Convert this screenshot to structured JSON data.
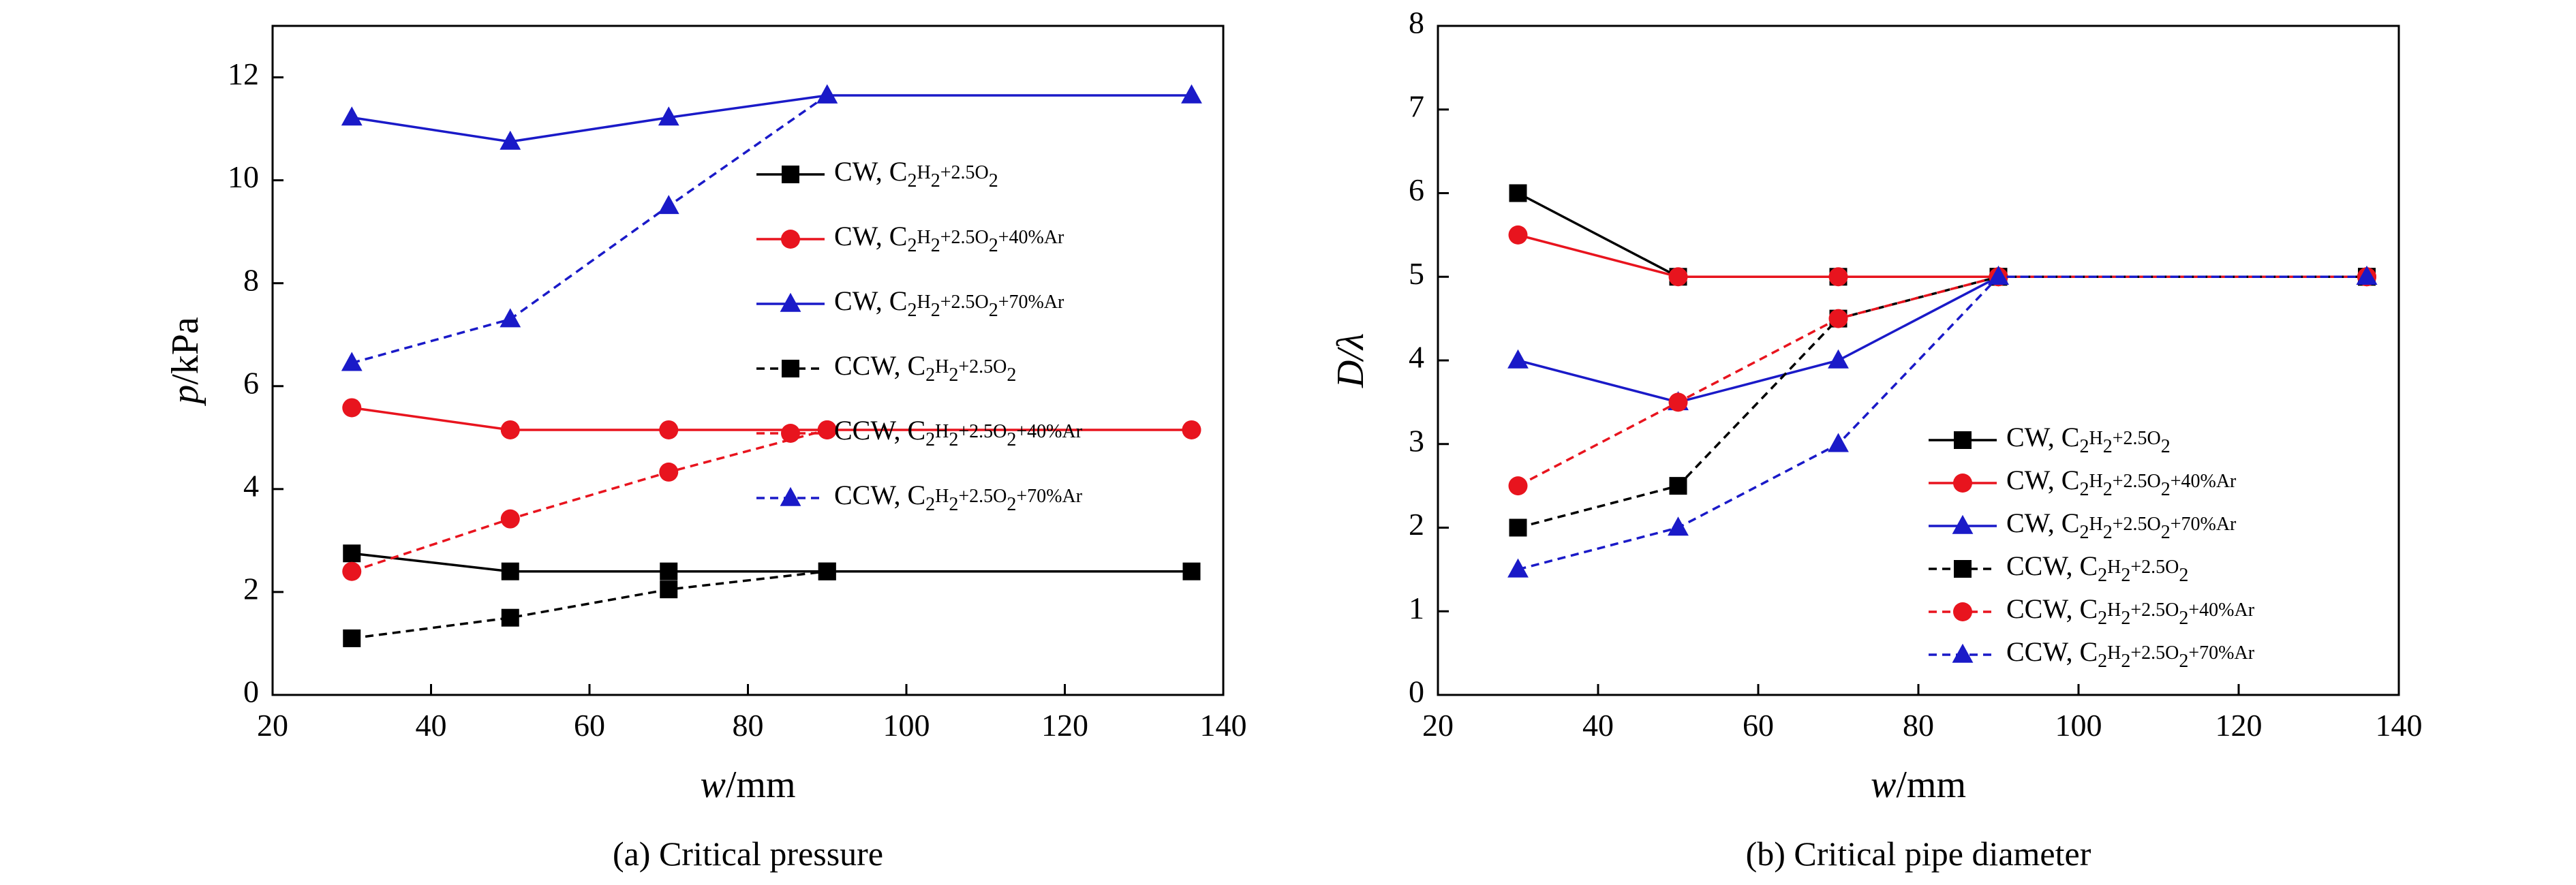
{
  "chart_data": [
    {
      "type": "line",
      "caption": "(a) Critical pressure",
      "xlabel": {
        "var": "w",
        "unit": "/mm"
      },
      "ylabel": {
        "var": "p",
        "unit": "/kPa"
      },
      "xlim": [
        20,
        140
      ],
      "ylim": [
        0,
        13
      ],
      "xticks": [
        20,
        40,
        60,
        80,
        100,
        120,
        140
      ],
      "yticks": [
        0,
        2,
        4,
        6,
        8,
        10,
        12
      ],
      "grid": false,
      "legend_position": "right",
      "x": [
        30,
        50,
        70,
        90,
        136
      ],
      "series": [
        {
          "name": "CW, C2H2+2.5O2",
          "values": [
            2.75,
            2.4,
            2.4,
            2.4,
            2.4
          ]
        },
        {
          "name": "CW, C2H2+2.5O2+40%Ar",
          "values": [
            5.58,
            5.15,
            5.15,
            5.15,
            5.15
          ]
        },
        {
          "name": "CW, C2H2+2.5O2+70%Ar",
          "values": [
            11.22,
            10.75,
            11.22,
            11.65,
            11.65
          ]
        },
        {
          "name": "CCW, C2H2+2.5O2",
          "values": [
            1.1,
            1.5,
            2.05,
            2.4,
            null
          ]
        },
        {
          "name": "CCW, C2H2+2.5O2+40%Ar",
          "values": [
            2.4,
            3.42,
            4.33,
            5.15,
            null
          ]
        },
        {
          "name": "CCW, C2H2+2.5O2+70%Ar",
          "values": [
            6.45,
            7.3,
            9.5,
            11.65,
            null
          ]
        }
      ]
    },
    {
      "type": "line",
      "caption": "(b) Critical pipe diameter",
      "xlabel": {
        "var": "w",
        "unit": "/mm"
      },
      "ylabel": {
        "var": "D",
        "unit": "/λ"
      },
      "xlim": [
        20,
        140
      ],
      "ylim": [
        0,
        8
      ],
      "xticks": [
        20,
        40,
        60,
        80,
        100,
        120,
        140
      ],
      "yticks": [
        0,
        1,
        2,
        3,
        4,
        5,
        6,
        7,
        8
      ],
      "grid": false,
      "legend_position": "bottom-right",
      "x": [
        30,
        50,
        70,
        90,
        136
      ],
      "series": [
        {
          "name": "CW, C2H2+2.5O2",
          "values": [
            6,
            5,
            5,
            5,
            5
          ]
        },
        {
          "name": "CW, C2H2+2.5O2+40%Ar",
          "values": [
            5.5,
            5,
            5,
            5,
            5
          ]
        },
        {
          "name": "CW, C2H2+2.5O2+70%Ar",
          "values": [
            4,
            3.5,
            4,
            5,
            5
          ]
        },
        {
          "name": "CCW, C2H2+2.5O2",
          "values": [
            2,
            2.5,
            4.5,
            5,
            5
          ]
        },
        {
          "name": "CCW, C2H2+2.5O2+40%Ar",
          "values": [
            2.5,
            3.5,
            4.5,
            5,
            5
          ]
        },
        {
          "name": "CCW, C2H2+2.5O2+70%Ar",
          "values": [
            1.5,
            2,
            3,
            5,
            5
          ]
        }
      ]
    }
  ],
  "series_styles": [
    {
      "color": "#000000",
      "dash": "solid",
      "marker": "square"
    },
    {
      "color": "#e8141e",
      "dash": "solid",
      "marker": "circle"
    },
    {
      "color": "#1a1ac8",
      "dash": "solid",
      "marker": "triangle"
    },
    {
      "color": "#000000",
      "dash": "dashed",
      "marker": "square"
    },
    {
      "color": "#e8141e",
      "dash": "dashed",
      "marker": "circle"
    },
    {
      "color": "#1a1ac8",
      "dash": "dashed",
      "marker": "triangle"
    }
  ],
  "legend_entries": [
    {
      "prefix": "CW, C",
      "tail": ""
    },
    {
      "prefix": "CW, C",
      "tail": "+40%Ar"
    },
    {
      "prefix": "CW, C",
      "tail": "+70%Ar"
    },
    {
      "prefix": "CCW, C",
      "tail": ""
    },
    {
      "prefix": "CCW, C",
      "tail": "+40%Ar"
    },
    {
      "prefix": "CCW, C",
      "tail": "+70%Ar"
    }
  ]
}
